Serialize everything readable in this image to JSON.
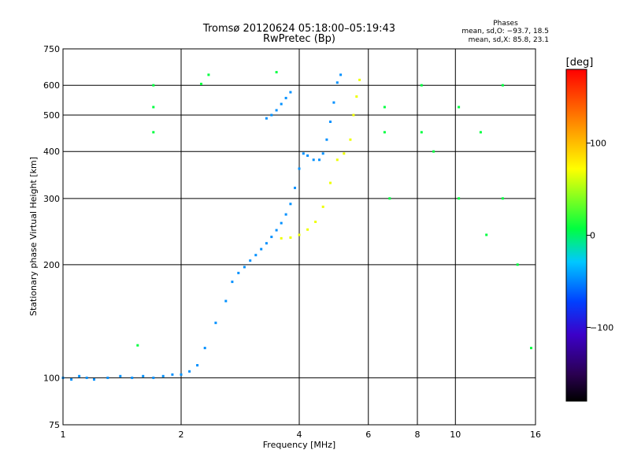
{
  "chart_data": {
    "type": "scatter",
    "title": "Tromsø 20120624 05:18:00–05:19:43",
    "subtitle": "RwPretec (Bp)",
    "xlabel": "Frequency [MHz]",
    "ylabel": "Stationary phase Virtual Height [km]",
    "x_scale": "log",
    "y_scale": "log",
    "xlim": [
      1,
      16
    ],
    "ylim": [
      75,
      750
    ],
    "x_ticks": [
      1,
      2,
      4,
      6,
      8,
      10,
      16
    ],
    "x_tick_labels": [
      "1",
      "2",
      "4",
      "6",
      "8",
      "10",
      "16"
    ],
    "y_ticks": [
      75,
      100,
      200,
      300,
      400,
      500,
      600,
      750
    ],
    "y_tick_labels": [
      "75",
      "100",
      "200",
      "300",
      "400",
      "500",
      "600",
      "750"
    ],
    "grid": true,
    "phase_stats": {
      "heading": "Phases",
      "line_o": "mean, sd,O: −93.7, 18.5",
      "line_x": "mean, sd,X: 85.8, 23.1"
    },
    "colorbar": {
      "label": "[deg]",
      "range": [
        -180,
        180
      ],
      "tick_values": [
        100,
        0,
        -100
      ],
      "tick_labels": [
        "100",
        "0",
        "−100"
      ]
    },
    "series": [
      {
        "trace": "o-mode",
        "phase": -95,
        "points": [
          [
            1.0,
            100
          ],
          [
            1.05,
            99
          ],
          [
            1.1,
            101
          ],
          [
            1.15,
            100
          ],
          [
            1.2,
            99
          ],
          [
            1.3,
            100
          ],
          [
            1.4,
            101
          ],
          [
            1.5,
            100
          ],
          [
            1.6,
            101
          ],
          [
            1.7,
            100
          ],
          [
            1.8,
            101
          ],
          [
            1.9,
            102
          ],
          [
            2.0,
            102
          ],
          [
            2.1,
            104
          ],
          [
            2.2,
            108
          ],
          [
            2.3,
            120
          ],
          [
            2.45,
            140
          ],
          [
            2.6,
            160
          ],
          [
            2.7,
            180
          ],
          [
            2.8,
            190
          ],
          [
            2.9,
            197
          ],
          [
            3.0,
            205
          ],
          [
            3.1,
            212
          ],
          [
            3.2,
            220
          ],
          [
            3.3,
            228
          ],
          [
            3.4,
            237
          ],
          [
            3.5,
            247
          ],
          [
            3.6,
            258
          ],
          [
            3.7,
            272
          ],
          [
            3.8,
            290
          ],
          [
            3.9,
            320
          ],
          [
            4.0,
            360
          ],
          [
            4.1,
            395
          ],
          [
            4.2,
            390
          ],
          [
            4.35,
            380
          ],
          [
            4.5,
            380
          ],
          [
            4.6,
            395
          ],
          [
            4.7,
            430
          ],
          [
            4.8,
            480
          ],
          [
            4.9,
            540
          ],
          [
            5.0,
            610
          ],
          [
            5.1,
            640
          ],
          [
            3.3,
            490
          ],
          [
            3.4,
            500
          ],
          [
            3.5,
            515
          ],
          [
            3.6,
            535
          ],
          [
            3.7,
            555
          ],
          [
            3.8,
            575
          ]
        ]
      },
      {
        "trace": "x-mode",
        "phase": 95,
        "points": [
          [
            3.6,
            235
          ],
          [
            3.8,
            236
          ],
          [
            4.0,
            240
          ],
          [
            4.2,
            248
          ],
          [
            4.4,
            260
          ],
          [
            4.6,
            285
          ],
          [
            4.8,
            330
          ],
          [
            5.0,
            380
          ],
          [
            5.2,
            395
          ],
          [
            5.4,
            430
          ],
          [
            5.5,
            500
          ],
          [
            5.6,
            560
          ],
          [
            5.7,
            620
          ]
        ]
      },
      {
        "trace": "scattered",
        "phase": 0,
        "points": [
          [
            1.55,
            122
          ],
          [
            1.7,
            600
          ],
          [
            1.7,
            525
          ],
          [
            1.7,
            450
          ],
          [
            2.25,
            605
          ],
          [
            2.35,
            640
          ],
          [
            3.5,
            650
          ],
          [
            6.6,
            525
          ],
          [
            6.6,
            450
          ],
          [
            6.8,
            300
          ],
          [
            8.2,
            600
          ],
          [
            8.2,
            450
          ],
          [
            8.8,
            400
          ],
          [
            10.2,
            525
          ],
          [
            10.2,
            300
          ],
          [
            11.6,
            450
          ],
          [
            12.0,
            240
          ],
          [
            13.2,
            600
          ],
          [
            13.2,
            300
          ],
          [
            14.4,
            200
          ],
          [
            15.6,
            120
          ]
        ]
      }
    ]
  }
}
